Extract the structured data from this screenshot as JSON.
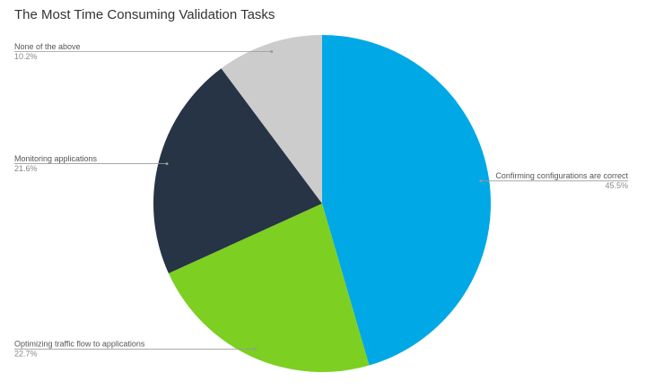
{
  "chart_data": {
    "type": "pie",
    "title": "The Most Time Consuming Validation Tasks",
    "categories": [
      "Confirming configurations are correct",
      "Optimizing traffic flow to applications",
      "Monitoring applications",
      "None of the above"
    ],
    "values": [
      45.5,
      22.7,
      21.6,
      10.2
    ],
    "value_labels": [
      "45.5%",
      "22.7%",
      "21.6%",
      "10.2%"
    ],
    "colors": [
      "#00a8e6",
      "#7dcf21",
      "#263445",
      "#cccccc"
    ]
  }
}
